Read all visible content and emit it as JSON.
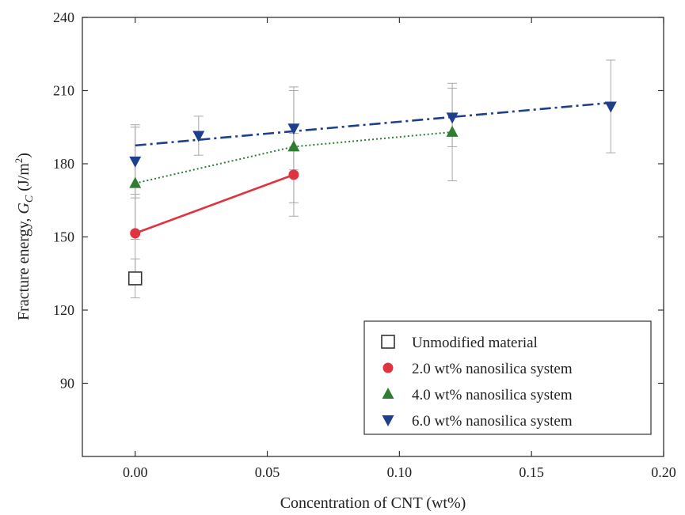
{
  "chart_data": {
    "type": "scatter",
    "title": "",
    "xlabel": "Concentration of CNT (wt%)",
    "ylabel": {
      "prefix": "Fracture energy, ",
      "var": "G",
      "sub": "C",
      "unit_open": " (J/m",
      "sup": "2",
      "unit_close": ")"
    },
    "xlim": [
      -0.02,
      0.2
    ],
    "ylim": [
      60,
      240
    ],
    "x_ticks": [
      0.0,
      0.05,
      0.1,
      0.15,
      0.2
    ],
    "x_tick_labels": [
      "0.00",
      "0.05",
      "0.10",
      "0.15",
      "0.20"
    ],
    "y_ticks": [
      90,
      120,
      150,
      180,
      210,
      240
    ],
    "y_tick_labels": [
      "90",
      "120",
      "150",
      "180",
      "210",
      "240"
    ],
    "legend_position": "bottom-right",
    "series": [
      {
        "name": "Unmodified material",
        "marker": "open-square",
        "color": "#333333",
        "line": "none",
        "points": [
          {
            "x": 0.0,
            "y": 133,
            "err": 8
          }
        ]
      },
      {
        "name": "2.0 wt% nanosilica system",
        "marker": "circle",
        "color": "#e0323f",
        "line": "solid",
        "points": [
          {
            "x": 0.0,
            "y": 151.5,
            "err": 16
          },
          {
            "x": 0.06,
            "y": 175.5,
            "err": 17
          }
        ]
      },
      {
        "name": "4.0 wt% nanosilica system",
        "marker": "triangle-up",
        "color": "#2e7d32",
        "line": "dotted",
        "points": [
          {
            "x": 0.0,
            "y": 172,
            "err": 23
          },
          {
            "x": 0.06,
            "y": 187,
            "err": 23
          },
          {
            "x": 0.12,
            "y": 193,
            "err": 20
          }
        ]
      },
      {
        "name": "6.0 wt% nanosilica system",
        "marker": "triangle-down",
        "color": "#1e3f8c",
        "line": "dashdot",
        "fit": [
          {
            "x": 0.0,
            "y": 187.5
          },
          {
            "x": 0.18,
            "y": 205
          }
        ],
        "points": [
          {
            "x": 0.0,
            "y": 181,
            "err": 15
          },
          {
            "x": 0.024,
            "y": 191.5,
            "err": 8
          },
          {
            "x": 0.06,
            "y": 194.5,
            "err": 17
          },
          {
            "x": 0.12,
            "y": 199,
            "err": 12
          },
          {
            "x": 0.18,
            "y": 203.5,
            "err": 19
          }
        ]
      }
    ]
  }
}
